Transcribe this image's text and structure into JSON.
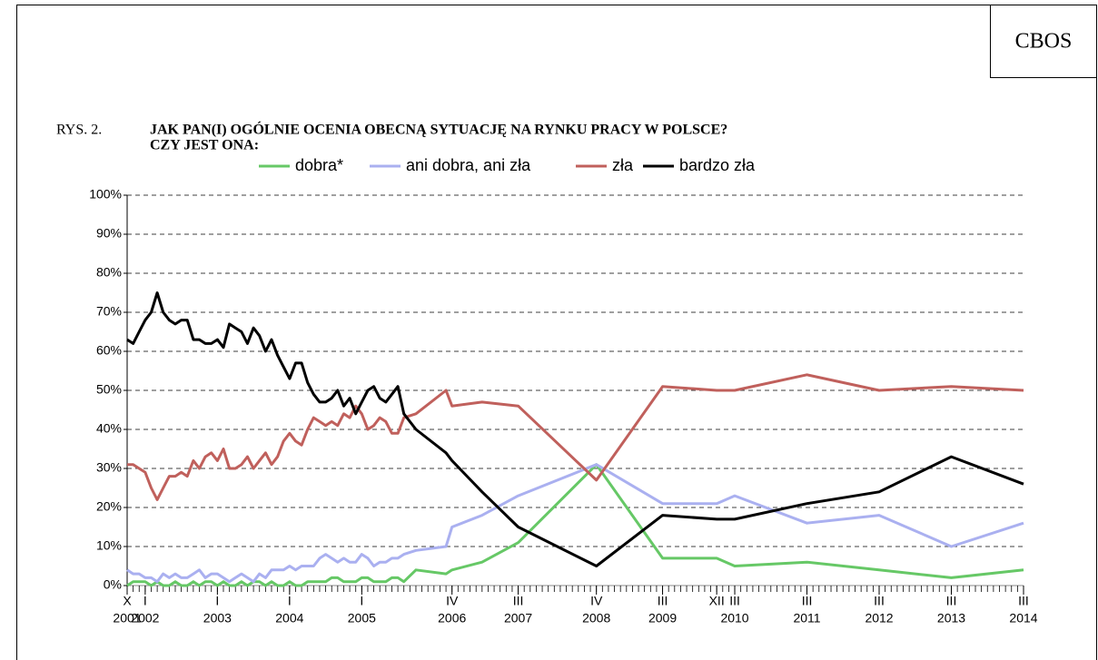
{
  "source": "CBOS",
  "figure_label": "RYS. 2.",
  "chart_data": {
    "type": "line",
    "title": [
      "JAK PAN(I) OGÓLNIE OCENIA OBECNĄ SYTUACJĘ NA RYNKU PRACY W POLSCE?",
      "CZY JEST ONA:"
    ],
    "x": [
      "2001-10",
      "2001-11",
      "2001-12",
      "2002-01",
      "2002-02",
      "2002-03",
      "2002-04",
      "2002-05",
      "2002-06",
      "2002-07",
      "2002-08",
      "2002-09",
      "2002-10",
      "2002-11",
      "2002-12",
      "2003-01",
      "2003-02",
      "2003-03",
      "2003-04",
      "2003-05",
      "2003-06",
      "2003-07",
      "2003-08",
      "2003-09",
      "2003-10",
      "2003-11",
      "2003-12",
      "2004-01",
      "2004-02",
      "2004-03",
      "2004-04",
      "2004-05",
      "2004-06",
      "2004-07",
      "2004-08",
      "2004-09",
      "2004-10",
      "2004-11",
      "2004-12",
      "2005-01",
      "2005-02",
      "2005-03",
      "2005-04",
      "2005-05",
      "2005-06",
      "2005-07",
      "2005-08",
      "2005-10",
      "2006-03",
      "2006-04",
      "2006-09",
      "2007-03",
      "2008-04",
      "2009-03",
      "2009-12",
      "2010-03",
      "2011-03",
      "2012-03",
      "2013-03",
      "2014-03"
    ],
    "series": [
      {
        "name": "dobra*",
        "color": "#66c866",
        "values": [
          0,
          1,
          1,
          1,
          0,
          1,
          0,
          0,
          1,
          0,
          0,
          1,
          0,
          1,
          1,
          0,
          1,
          0,
          0,
          1,
          0,
          1,
          1,
          0,
          1,
          0,
          0,
          1,
          0,
          0,
          1,
          1,
          1,
          1,
          2,
          2,
          1,
          1,
          1,
          2,
          2,
          1,
          1,
          1,
          2,
          2,
          1,
          4,
          3,
          4,
          6,
          11,
          31,
          7,
          7,
          5,
          6,
          4,
          2,
          4
        ]
      },
      {
        "name": "ani dobra, ani zła",
        "color": "#aab0f0",
        "values": [
          4,
          3,
          3,
          2,
          2,
          1,
          3,
          2,
          3,
          2,
          2,
          3,
          4,
          2,
          3,
          3,
          2,
          1,
          2,
          3,
          2,
          1,
          3,
          2,
          4,
          4,
          4,
          5,
          4,
          5,
          5,
          5,
          7,
          8,
          7,
          6,
          7,
          6,
          6,
          8,
          7,
          5,
          6,
          6,
          7,
          7,
          8,
          9,
          10,
          15,
          18,
          23,
          31,
          21,
          21,
          23,
          16,
          18,
          10,
          16
        ]
      },
      {
        "name": "zła",
        "color": "#c0605c",
        "values": [
          31,
          31,
          30,
          29,
          25,
          22,
          25,
          28,
          28,
          29,
          28,
          32,
          30,
          33,
          34,
          32,
          35,
          30,
          30,
          31,
          33,
          30,
          32,
          34,
          31,
          33,
          37,
          39,
          37,
          36,
          40,
          43,
          42,
          41,
          42,
          41,
          44,
          43,
          46,
          44,
          40,
          41,
          43,
          42,
          39,
          39,
          43,
          44,
          50,
          46,
          47,
          46,
          27,
          51,
          50,
          50,
          54,
          50,
          51,
          50
        ]
      },
      {
        "name": "bardzo zła",
        "color": "#000000",
        "values": [
          63,
          62,
          65,
          68,
          70,
          75,
          70,
          68,
          67,
          68,
          68,
          63,
          63,
          62,
          62,
          63,
          61,
          67,
          66,
          65,
          62,
          66,
          64,
          60,
          63,
          59,
          56,
          53,
          57,
          57,
          52,
          49,
          47,
          47,
          48,
          50,
          46,
          48,
          44,
          47,
          50,
          51,
          48,
          47,
          49,
          51,
          44,
          40,
          34,
          32,
          24,
          15,
          5,
          18,
          17,
          17,
          21,
          24,
          33,
          26
        ]
      }
    ],
    "xlim": [
      "2001-10",
      "2014-03"
    ],
    "xticks": [
      {
        "value": "2001-10",
        "label": "X"
      },
      {
        "value": "2002-01",
        "label": "I"
      },
      {
        "value": "2003-01",
        "label": "I"
      },
      {
        "value": "2004-01",
        "label": "I"
      },
      {
        "value": "2005-01",
        "label": "I"
      },
      {
        "value": "2006-04",
        "label": "IV"
      },
      {
        "value": "2007-03",
        "label": "III"
      },
      {
        "value": "2008-04",
        "label": "IV"
      },
      {
        "value": "2009-03",
        "label": "III"
      },
      {
        "value": "2009-12",
        "label": "XII"
      },
      {
        "value": "2010-03",
        "label": "III"
      },
      {
        "value": "2011-03",
        "label": "III"
      },
      {
        "value": "2012-03",
        "label": "III"
      },
      {
        "value": "2013-03",
        "label": "III"
      },
      {
        "value": "2014-03",
        "label": "III"
      }
    ],
    "xtick_years": [
      {
        "value": "2001-10",
        "label": "2001"
      },
      {
        "value": "2002-01",
        "label": "2002"
      },
      {
        "value": "2003-01",
        "label": "2003"
      },
      {
        "value": "2004-01",
        "label": "2004"
      },
      {
        "value": "2005-01",
        "label": "2005"
      },
      {
        "value": "2006-04",
        "label": "2006"
      },
      {
        "value": "2007-03",
        "label": "2007"
      },
      {
        "value": "2008-04",
        "label": "2008"
      },
      {
        "value": "2009-03",
        "label": "2009"
      },
      {
        "value": "2010-03",
        "label": "2010"
      },
      {
        "value": "2011-03",
        "label": "2011"
      },
      {
        "value": "2012-03",
        "label": "2012"
      },
      {
        "value": "2013-03",
        "label": "2013"
      },
      {
        "value": "2014-03",
        "label": "2014"
      }
    ],
    "ylim": [
      0,
      100
    ],
    "yticks": [
      {
        "value": 0,
        "label": "0%"
      },
      {
        "value": 10,
        "label": "10%"
      },
      {
        "value": 20,
        "label": "20%"
      },
      {
        "value": 30,
        "label": "30%"
      },
      {
        "value": 40,
        "label": "40%"
      },
      {
        "value": 50,
        "label": "50%"
      },
      {
        "value": 60,
        "label": "60%"
      },
      {
        "value": 70,
        "label": "70%"
      },
      {
        "value": 80,
        "label": "80%"
      },
      {
        "value": 90,
        "label": "90%"
      },
      {
        "value": 100,
        "label": "100%"
      }
    ],
    "grid": true,
    "legend": "top"
  }
}
